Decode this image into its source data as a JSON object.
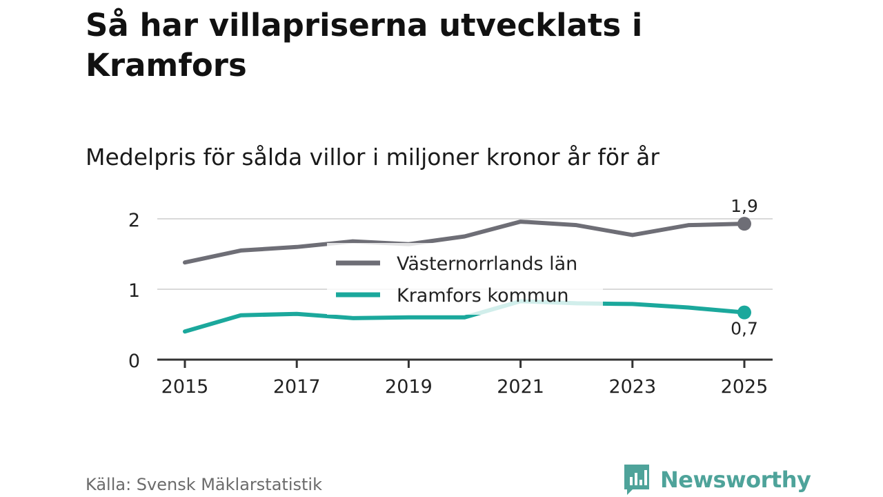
{
  "title": "Så har villapriserna utvecklats i Kramfors",
  "subtitle": "Medelpris för sålda villor i miljoner kronor år för år",
  "source": "Källa: Svensk Mäklarstatistik",
  "brand": "Newsworthy",
  "colors": {
    "lan": "#6e6e76",
    "kommun": "#1ba89c",
    "grid": "#d9d9d9",
    "axis": "#333333",
    "brand": "#4ea39a"
  },
  "chart_data": {
    "type": "line",
    "x": [
      2015,
      2016,
      2017,
      2018,
      2019,
      2020,
      2021,
      2022,
      2023,
      2024,
      2025
    ],
    "series": [
      {
        "name": "Västernorrlands län",
        "values": [
          1.38,
          1.55,
          1.6,
          1.68,
          1.64,
          1.75,
          1.96,
          1.91,
          1.77,
          1.91,
          1.93
        ],
        "end_label": "1,9",
        "color": "#6e6e76"
      },
      {
        "name": "Kramfors kommun",
        "values": [
          0.4,
          0.63,
          0.65,
          0.59,
          0.6,
          0.6,
          0.83,
          0.8,
          0.79,
          0.74,
          0.67
        ],
        "end_label": "0,7",
        "color": "#1ba89c"
      }
    ],
    "ylim": [
      0,
      2.2
    ],
    "yticks": [
      0,
      1,
      2
    ],
    "xticks": [
      2015,
      2017,
      2019,
      2021,
      2023,
      2025
    ],
    "grid": true,
    "legend": "center"
  }
}
